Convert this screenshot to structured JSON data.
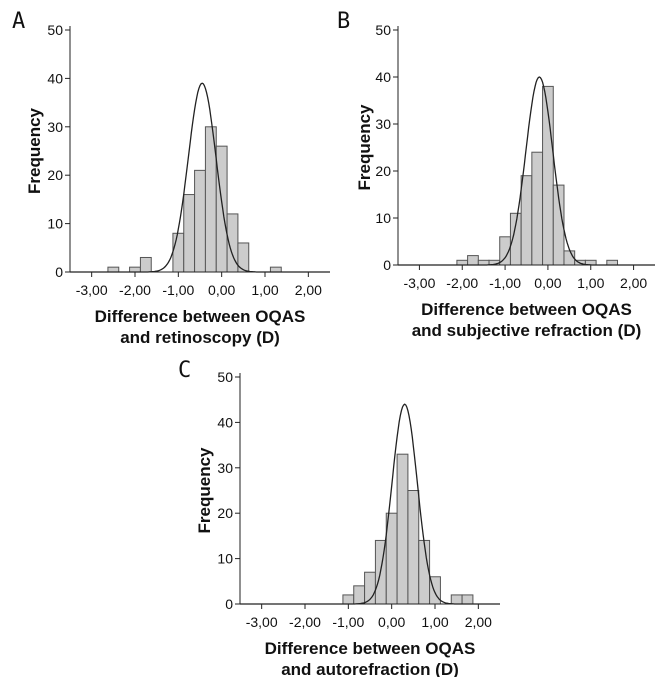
{
  "chart_data": [
    {
      "panel_label": "A",
      "type": "bar",
      "ylabel": "Frequency",
      "xlabel_lines": [
        "Difference between OQAS",
        "and retinoscopy (D)"
      ],
      "x_ticks": [
        "-3,00",
        "-2,00",
        "-1,00",
        "0,00",
        "1,00",
        "2,00"
      ],
      "y_ticks": [
        "0",
        "10",
        "20",
        "30",
        "40",
        "50"
      ],
      "xlim": [
        -3.5,
        2.5
      ],
      "ylim": [
        0,
        50
      ],
      "bin_width": 0.25,
      "bins": [
        {
          "x": -2.5,
          "value": 1
        },
        {
          "x": -2.0,
          "value": 1
        },
        {
          "x": -1.75,
          "value": 3
        },
        {
          "x": -1.0,
          "value": 8
        },
        {
          "x": -0.75,
          "value": 16
        },
        {
          "x": -0.5,
          "value": 21
        },
        {
          "x": -0.25,
          "value": 30
        },
        {
          "x": 0.0,
          "value": 26
        },
        {
          "x": 0.25,
          "value": 12
        },
        {
          "x": 0.5,
          "value": 6
        },
        {
          "x": 1.25,
          "value": 1
        }
      ],
      "normal_curve": {
        "mean": -0.45,
        "peak": 39
      }
    },
    {
      "panel_label": "B",
      "type": "bar",
      "ylabel": "Frequency",
      "xlabel_lines": [
        "Difference between OQAS",
        "and subjective refraction (D)"
      ],
      "x_ticks": [
        "-3,00",
        "-2,00",
        "-1,00",
        "0,00",
        "1,00",
        "2,00"
      ],
      "y_ticks": [
        "0",
        "10",
        "20",
        "30",
        "40",
        "50"
      ],
      "xlim": [
        -3.5,
        2.5
      ],
      "ylim": [
        0,
        50
      ],
      "bin_width": 0.25,
      "bins": [
        {
          "x": -2.0,
          "value": 1
        },
        {
          "x": -1.75,
          "value": 2
        },
        {
          "x": -1.5,
          "value": 1
        },
        {
          "x": -1.25,
          "value": 1
        },
        {
          "x": -1.0,
          "value": 6
        },
        {
          "x": -0.75,
          "value": 11
        },
        {
          "x": -0.5,
          "value": 19
        },
        {
          "x": -0.25,
          "value": 24
        },
        {
          "x": 0.0,
          "value": 38
        },
        {
          "x": 0.25,
          "value": 17
        },
        {
          "x": 0.5,
          "value": 3
        },
        {
          "x": 0.75,
          "value": 1
        },
        {
          "x": 1.0,
          "value": 1
        },
        {
          "x": 1.5,
          "value": 1
        }
      ],
      "normal_curve": {
        "mean": -0.2,
        "peak": 40
      }
    },
    {
      "panel_label": "C",
      "type": "bar",
      "ylabel": "Frequency",
      "xlabel_lines": [
        "Difference between OQAS",
        "and autorefraction (D)"
      ],
      "x_ticks": [
        "-3,00",
        "-2,00",
        "-1,00",
        "0,00",
        "1,00",
        "2,00"
      ],
      "y_ticks": [
        "0",
        "10",
        "20",
        "30",
        "40",
        "50"
      ],
      "xlim": [
        -3.5,
        2.5
      ],
      "ylim": [
        0,
        50
      ],
      "bin_width": 0.25,
      "bins": [
        {
          "x": -1.0,
          "value": 2
        },
        {
          "x": -0.75,
          "value": 4
        },
        {
          "x": -0.5,
          "value": 7
        },
        {
          "x": -0.25,
          "value": 14
        },
        {
          "x": 0.0,
          "value": 20
        },
        {
          "x": 0.25,
          "value": 33
        },
        {
          "x": 0.5,
          "value": 25
        },
        {
          "x": 0.75,
          "value": 14
        },
        {
          "x": 1.0,
          "value": 6
        },
        {
          "x": 1.5,
          "value": 2
        },
        {
          "x": 1.75,
          "value": 2
        }
      ],
      "normal_curve": {
        "mean": 0.3,
        "peak": 44
      }
    }
  ]
}
